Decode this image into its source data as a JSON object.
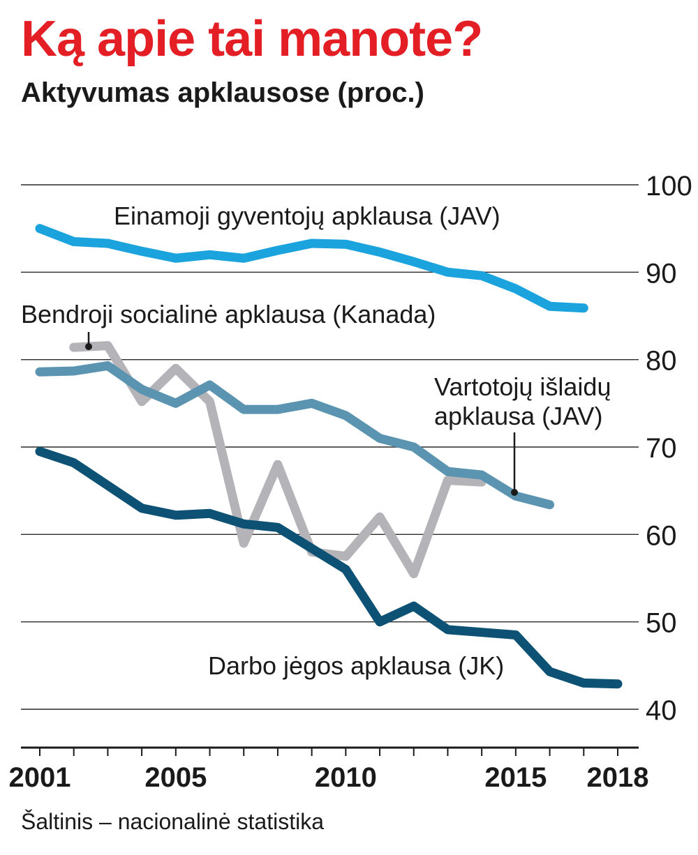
{
  "title": "Ką apie tai manote?",
  "subtitle": "Aktyvumas apklausose (proc.)",
  "source": "Šaltinis – nacionalinė statistika",
  "chart_data": {
    "type": "line",
    "x_ticks": [
      2001,
      2005,
      2010,
      2015,
      2018
    ],
    "y_ticks": [
      40,
      50,
      60,
      70,
      80,
      90,
      100
    ],
    "xlim": [
      2001,
      2018
    ],
    "ylim": [
      40,
      100
    ],
    "grid": "horizontal",
    "series": [
      {
        "name": "Einamoji gyventojų apklausa (JAV)",
        "color": "#1ba3de",
        "x": [
          2001,
          2002,
          2003,
          2004,
          2005,
          2006,
          2007,
          2008,
          2009,
          2010,
          2011,
          2012,
          2013,
          2014,
          2015,
          2016,
          2017
        ],
        "values": [
          95.0,
          93.5,
          93.3,
          92.4,
          91.6,
          92.0,
          91.6,
          92.5,
          93.3,
          93.2,
          92.3,
          91.2,
          90.0,
          89.6,
          88.1,
          86.1,
          85.9
        ]
      },
      {
        "name": "Bendroji socialinė apklausa (Kanada)",
        "color": "#b3b3b8",
        "x": [
          2002,
          2003,
          2004,
          2005,
          2006,
          2007,
          2008,
          2009,
          2010,
          2011,
          2012,
          2013,
          2014
        ],
        "values": [
          81.4,
          81.6,
          75.2,
          79.0,
          75.2,
          59.0,
          68.0,
          58.0,
          57.5,
          62.0,
          55.5,
          66.2,
          66.0
        ]
      },
      {
        "name": "Vartotojų išlaidų apklausa (JAV)",
        "color": "#5b94b0",
        "x": [
          2001,
          2002,
          2003,
          2004,
          2005,
          2006,
          2007,
          2008,
          2009,
          2010,
          2011,
          2012,
          2013,
          2014,
          2015,
          2016
        ],
        "values": [
          78.6,
          78.7,
          79.3,
          76.6,
          75.0,
          77.1,
          74.3,
          74.3,
          75.0,
          73.6,
          71.0,
          70.0,
          67.2,
          66.8,
          64.4,
          63.4
        ]
      },
      {
        "name": "Darbo jėgos apklausa (JK)",
        "color": "#0d5175",
        "x": [
          2001,
          2002,
          2003,
          2004,
          2005,
          2006,
          2007,
          2008,
          2009,
          2010,
          2011,
          2012,
          2013,
          2014,
          2015,
          2016,
          2017,
          2018
        ],
        "values": [
          69.5,
          68.2,
          65.6,
          63.0,
          62.2,
          62.4,
          61.2,
          60.8,
          58.4,
          56.0,
          50.0,
          51.8,
          49.1,
          48.8,
          48.5,
          44.3,
          43.0,
          42.9
        ]
      }
    ]
  }
}
